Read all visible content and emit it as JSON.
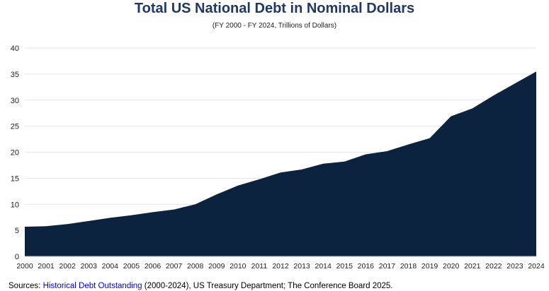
{
  "chart_data": {
    "type": "area",
    "title": "Total US National Debt in Nominal Dollars",
    "subtitle": "(FY 2000 - FY 2024, Trillions of Dollars)",
    "xlabel": "",
    "ylabel": "",
    "x": [
      "2000",
      "2001",
      "2002",
      "2003",
      "2004",
      "2005",
      "2006",
      "2007",
      "2008",
      "2009",
      "2010",
      "2011",
      "2012",
      "2013",
      "2014",
      "2015",
      "2016",
      "2017",
      "2018",
      "2019",
      "2020",
      "2021",
      "2022",
      "2023",
      "2024"
    ],
    "series": [
      {
        "values": [
          5.7,
          5.8,
          6.2,
          6.8,
          7.4,
          7.9,
          8.5,
          9.0,
          10.0,
          11.9,
          13.6,
          14.8,
          16.1,
          16.7,
          17.8,
          18.2,
          19.6,
          20.2,
          21.5,
          22.7,
          26.9,
          28.4,
          30.9,
          33.2,
          35.5
        ]
      }
    ],
    "ylim": [
      0,
      40
    ],
    "yticks": [
      0,
      5,
      10,
      15,
      20,
      25,
      30,
      35,
      40
    ],
    "grid": true,
    "legend": "none",
    "colors": {
      "fill": "#0c2340",
      "grid": "#e6e6e6",
      "title": "#1f3864"
    }
  },
  "footer": {
    "prefix": "Sources: ",
    "link_text": "Historical Debt Outstanding",
    "suffix": " (2000-2024), US Treasury Department; The Conference Board 2025."
  }
}
